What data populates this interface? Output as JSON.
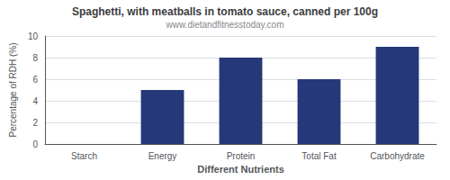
{
  "chart_data": {
    "type": "bar",
    "title": "Spaghetti, with meatballs in tomato sauce, canned per 100g",
    "subtitle": "www.dietandfitnesstoday.com",
    "categories": [
      "Starch",
      "Energy",
      "Protein",
      "Total Fat",
      "Carbohydrate"
    ],
    "values": [
      0,
      5,
      8,
      6,
      9
    ],
    "color": "#253878",
    "xlabel": "Different Nutrients",
    "ylabel": "Percentage of RDH (%)",
    "ylim": [
      0,
      10
    ],
    "yticks": [
      0,
      2,
      4,
      6,
      8,
      10
    ],
    "grid": true
  }
}
